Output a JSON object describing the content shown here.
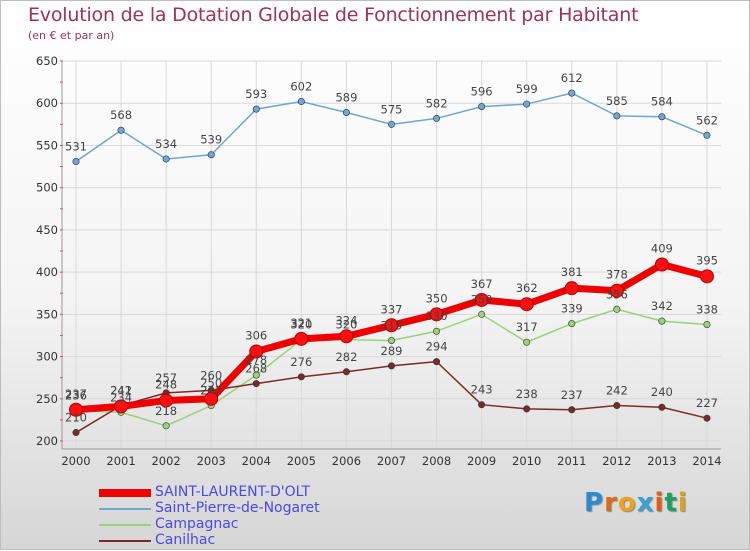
{
  "title": "Evolution de la Dotation Globale de Fonctionnement par Habitant",
  "subtitle": "(en € et par an)",
  "logo": "Proxiti",
  "chart_data": {
    "type": "line",
    "title": "Evolution de la Dotation Globale de Fonctionnement par Habitant",
    "ylabel": "(en € et par an)",
    "xlabel": "",
    "ylim": [
      200,
      650
    ],
    "yticks": [
      200,
      250,
      300,
      350,
      400,
      450,
      500,
      550,
      600,
      650
    ],
    "categories": [
      "2000",
      "2001",
      "2002",
      "2003",
      "2004",
      "2005",
      "2006",
      "2007",
      "2008",
      "2009",
      "2010",
      "2011",
      "2012",
      "2013",
      "2014"
    ],
    "series": [
      {
        "name": "SAINT-LAURENT-D'OLT",
        "color": "#ee0000",
        "values": [
          237,
          241,
          248,
          250,
          306,
          321,
          324,
          337,
          350,
          367,
          362,
          381,
          378,
          409,
          395
        ]
      },
      {
        "name": "Saint-Pierre-de-Nogaret",
        "color": "#6ea6d6",
        "values": [
          531,
          568,
          534,
          539,
          593,
          602,
          589,
          575,
          582,
          596,
          599,
          612,
          585,
          584,
          562
        ]
      },
      {
        "name": "Campagnac",
        "color": "#9ad27a",
        "values": [
          236,
          234,
          218,
          242,
          278,
          320,
          320,
          319,
          330,
          350,
          317,
          339,
          356,
          342,
          338
        ]
      },
      {
        "name": "Canilhac",
        "color": "#7a2a2a",
        "values": [
          210,
          242,
          257,
          260,
          268,
          276,
          282,
          289,
          294,
          243,
          238,
          237,
          242,
          240,
          227
        ]
      }
    ],
    "legend": "bottom-left"
  }
}
